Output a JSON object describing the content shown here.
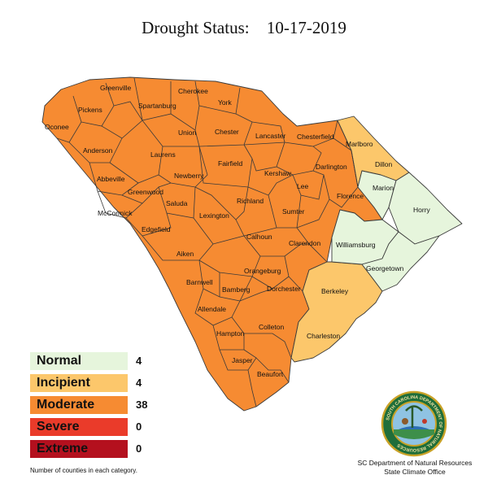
{
  "header": {
    "title": "Drought Status:",
    "date": "10-17-2019"
  },
  "colors": {
    "normal": "#e6f5dc",
    "incipient": "#fcc76b",
    "moderate": "#f68b32",
    "severe": "#ea3b2a",
    "extreme": "#b4101e"
  },
  "counties": {
    "greenville": "Greenville",
    "cherokee": "Cherokee",
    "pickens": "Pickens",
    "spartanburg": "Spartanburg",
    "york": "York",
    "oconee": "Oconee",
    "union": "Union",
    "chester": "Chester",
    "lancaster": "Lancaster",
    "chesterfield": "Chesterfield",
    "marlboro": "Marlboro",
    "anderson": "Anderson",
    "laurens": "Laurens",
    "fairfield": "Fairfield",
    "darlington": "Darlington",
    "dillon": "Dillon",
    "abbeville": "Abbeville",
    "newberry": "Newberry",
    "kershaw": "Kershaw",
    "lee": "Lee",
    "marion": "Marion",
    "greenwood": "Greenwood",
    "richland": "Richland",
    "florence": "Florence",
    "horry": "Horry",
    "mccormick": "McCormick",
    "saluda": "Saluda",
    "sumter": "Sumter",
    "edgefield": "Edgefield",
    "lexington": "Lexington",
    "calhoun": "Calhoun",
    "williamsburg": "Williamsburg",
    "clarendon": "Clarendon",
    "aiken": "Aiken",
    "georgetown": "Georgetown",
    "orangeburg": "Orangeburg",
    "barnwell": "Barnwell",
    "bamberg": "Bamberg",
    "dorchester": "Dorchester",
    "berkeley": "Berkeley",
    "allendale": "Allendale",
    "colleton": "Colleton",
    "hampton": "Hampton",
    "charleston": "Charleston",
    "jasper": "Jasper",
    "beaufort": "Beaufort"
  },
  "legend": [
    {
      "label": "Normal",
      "count": "4",
      "color": "#e6f5dc"
    },
    {
      "label": "Incipient",
      "count": "4",
      "color": "#fcc76b"
    },
    {
      "label": "Moderate",
      "count": "38",
      "color": "#f68b32"
    },
    {
      "label": "Severe",
      "count": "0",
      "color": "#ea3b2a"
    },
    {
      "label": "Extreme",
      "count": "0",
      "color": "#b4101e"
    }
  ],
  "footer": {
    "note": "Number of counties in each category.",
    "credit_line1": "SC Department of Natural Resources",
    "credit_line2": "State Climate Office",
    "seal_text": "SOUTH CAROLINA DEPARTMENT OF NATURAL RESOURCES"
  }
}
